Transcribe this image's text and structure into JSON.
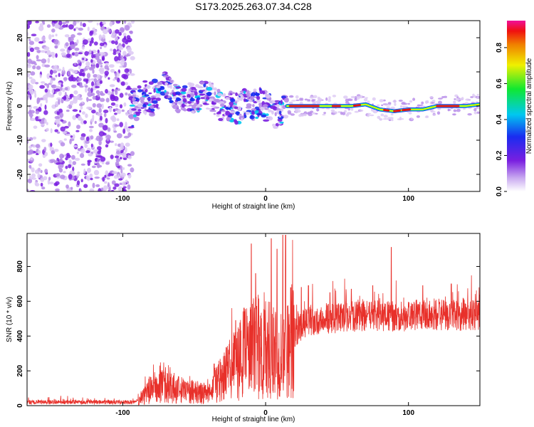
{
  "title": "S173.2025.263.07.34.C28",
  "chart_data": [
    {
      "type": "heatmap",
      "name": "spectrogram",
      "xlabel": "Height of straight line (km)",
      "ylabel": "Frequency (Hz)",
      "xlim": [
        -167,
        150
      ],
      "ylim": [
        -25,
        25
      ],
      "xticks": [
        -100,
        0,
        100
      ],
      "yticks": [
        -20,
        -10,
        0,
        10,
        20
      ],
      "colorbar": {
        "label": "Normalized spectral amplitude",
        "range": [
          0,
          1
        ],
        "ticks": [
          "0.0",
          "0.2",
          "0.4",
          "0.6",
          "0.8"
        ]
      },
      "ridge_track": [
        [
          -95,
          -2
        ],
        [
          -90,
          1
        ],
        [
          -85,
          3
        ],
        [
          -80,
          2
        ],
        [
          -75,
          4
        ],
        [
          -70,
          6
        ],
        [
          -65,
          3
        ],
        [
          -60,
          2
        ],
        [
          -55,
          3
        ],
        [
          -50,
          2
        ],
        [
          -45,
          3
        ],
        [
          -40,
          3
        ],
        [
          -35,
          2
        ],
        [
          -30,
          -1
        ],
        [
          -25,
          0
        ],
        [
          -20,
          -1
        ],
        [
          -15,
          1
        ],
        [
          -10,
          0
        ],
        [
          -5,
          1
        ],
        [
          0,
          0
        ],
        [
          5,
          -2
        ],
        [
          10,
          -2
        ],
        [
          15,
          0
        ],
        [
          20,
          0
        ],
        [
          40,
          0
        ],
        [
          60,
          0
        ],
        [
          70,
          0.5
        ],
        [
          80,
          -1
        ],
        [
          90,
          -1.5
        ],
        [
          100,
          -1
        ],
        [
          110,
          -1
        ],
        [
          120,
          0
        ],
        [
          130,
          0
        ],
        [
          140,
          0
        ],
        [
          150,
          0.5
        ]
      ]
    },
    {
      "type": "line",
      "name": "snr",
      "xlabel": "Height of straight line (km)",
      "ylabel": "SNR (10 * v/v)",
      "xlim": [
        -167,
        150
      ],
      "ylim": [
        0,
        990
      ],
      "xticks": [
        -100,
        0,
        100
      ],
      "yticks": [
        0,
        200,
        400,
        600,
        800
      ],
      "color": "#e8302a",
      "envelope": [
        [
          -167,
          20
        ],
        [
          -100,
          20
        ],
        [
          -90,
          20
        ],
        [
          -85,
          60
        ],
        [
          -80,
          100
        ],
        [
          -70,
          110
        ],
        [
          -60,
          90
        ],
        [
          -50,
          80
        ],
        [
          -45,
          70
        ],
        [
          -40,
          60
        ],
        [
          -35,
          130
        ],
        [
          -30,
          180
        ],
        [
          -25,
          200
        ],
        [
          -20,
          250
        ],
        [
          -15,
          300
        ],
        [
          -10,
          320
        ],
        [
          -5,
          340
        ],
        [
          0,
          350
        ],
        [
          5,
          300
        ],
        [
          10,
          320
        ],
        [
          15,
          330
        ],
        [
          20,
          420
        ],
        [
          25,
          450
        ],
        [
          30,
          490
        ],
        [
          40,
          500
        ],
        [
          60,
          510
        ],
        [
          80,
          520
        ],
        [
          90,
          510
        ],
        [
          100,
          520
        ],
        [
          120,
          520
        ],
        [
          150,
          520
        ]
      ],
      "peaks": [
        [
          -36,
          240
        ],
        [
          -21,
          490
        ],
        [
          -10,
          930
        ],
        [
          -7,
          760
        ],
        [
          4,
          960
        ],
        [
          8,
          900
        ],
        [
          12,
          980
        ],
        [
          14,
          980
        ],
        [
          88,
          910
        ],
        [
          25,
          680
        ],
        [
          30,
          690
        ],
        [
          45,
          650
        ],
        [
          60,
          670
        ],
        [
          75,
          690
        ],
        [
          110,
          690
        ],
        [
          130,
          700
        ]
      ]
    }
  ]
}
